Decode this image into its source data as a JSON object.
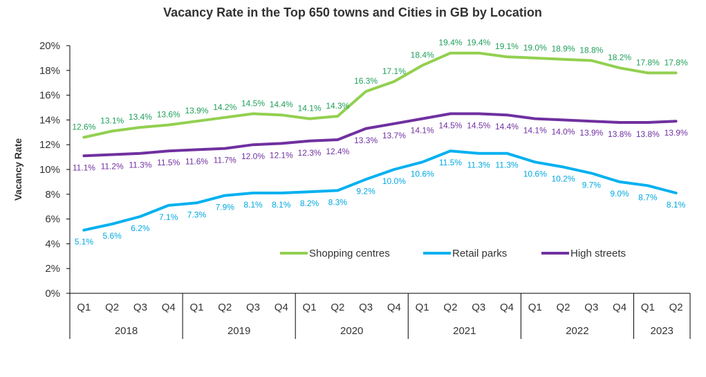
{
  "chart_data": {
    "type": "line",
    "title": "Vacancy Rate in the Top 650 towns and Cities in GB by Location",
    "ylabel": "Vacancy Rate",
    "xlabel": "",
    "ylim": [
      0,
      20
    ],
    "yticks": [
      "0%",
      "2%",
      "4%",
      "6%",
      "8%",
      "10%",
      "12%",
      "14%",
      "16%",
      "18%",
      "20%"
    ],
    "grid": false,
    "legend_position": "inside-lower-right",
    "categories": [
      "Q1",
      "Q2",
      "Q3",
      "Q4",
      "Q1",
      "Q2",
      "Q3",
      "Q4",
      "Q1",
      "Q2",
      "Q3",
      "Q4",
      "Q1",
      "Q2",
      "Q3",
      "Q4",
      "Q1",
      "Q2",
      "Q3",
      "Q4",
      "Q1",
      "Q2"
    ],
    "year_groups": [
      {
        "label": "2018",
        "count": 4
      },
      {
        "label": "2019",
        "count": 4
      },
      {
        "label": "2020",
        "count": 4
      },
      {
        "label": "2021",
        "count": 4
      },
      {
        "label": "2022",
        "count": 4
      },
      {
        "label": "2023",
        "count": 2
      }
    ],
    "series": [
      {
        "name": "Shopping centres",
        "color": "#92d050",
        "values": [
          12.6,
          13.1,
          13.4,
          13.6,
          13.9,
          14.2,
          14.5,
          14.4,
          14.1,
          14.3,
          16.3,
          17.1,
          18.4,
          19.4,
          19.4,
          19.1,
          19.0,
          18.9,
          18.8,
          18.2,
          17.8,
          17.8
        ],
        "labels": [
          "12.6%",
          "13.1%",
          "13.4%",
          "13.6%",
          "13.9%",
          "14.2%",
          "14.5%",
          "14.4%",
          "14.1%",
          "14.3%",
          "16.3%",
          "17.1%",
          "18.4%",
          "19.4%",
          "19.4%",
          "19.1%",
          "19.0%",
          "18.9%",
          "18.8%",
          "18.2%",
          "17.8%",
          "17.8%"
        ],
        "label_position": "above",
        "label_color": "#1fa05a"
      },
      {
        "name": "Retail parks",
        "color": "#00b0f0",
        "values": [
          5.1,
          5.6,
          6.2,
          7.1,
          7.3,
          7.9,
          8.1,
          8.1,
          8.2,
          8.3,
          9.2,
          10.0,
          10.6,
          11.5,
          11.3,
          11.3,
          10.6,
          10.2,
          9.7,
          9.0,
          8.7,
          8.1
        ],
        "labels": [
          "5.1%",
          "5.6%",
          "6.2%",
          "7.1%",
          "7.3%",
          "7.9%",
          "8.1%",
          "8.1%",
          "8.2%",
          "8.3%",
          "9.2%",
          "10.0%",
          "10.6%",
          "11.5%",
          "11.3%",
          "11.3%",
          "10.6%",
          "10.2%",
          "9.7%",
          "9.0%",
          "8.7%",
          "8.1%"
        ],
        "label_position": "below",
        "label_color": "#00a8e0"
      },
      {
        "name": "High streets",
        "color": "#7030a0",
        "values": [
          11.1,
          11.2,
          11.3,
          11.5,
          11.6,
          11.7,
          12.0,
          12.1,
          12.3,
          12.4,
          13.3,
          13.7,
          14.1,
          14.5,
          14.5,
          14.4,
          14.1,
          14.0,
          13.9,
          13.8,
          13.8,
          13.9
        ],
        "labels": [
          "11.1%",
          "11.2%",
          "11.3%",
          "11.5%",
          "11.6%",
          "11.7%",
          "12.0%",
          "12.1%",
          "12.3%",
          "12.4%",
          "13.3%",
          "13.7%",
          "14.1%",
          "14.5%",
          "14.5%",
          "14.4%",
          "14.1%",
          "14.0%",
          "13.9%",
          "13.8%",
          "13.8%",
          "13.9%"
        ],
        "label_position": "below",
        "label_color": "#7030a0"
      }
    ]
  }
}
